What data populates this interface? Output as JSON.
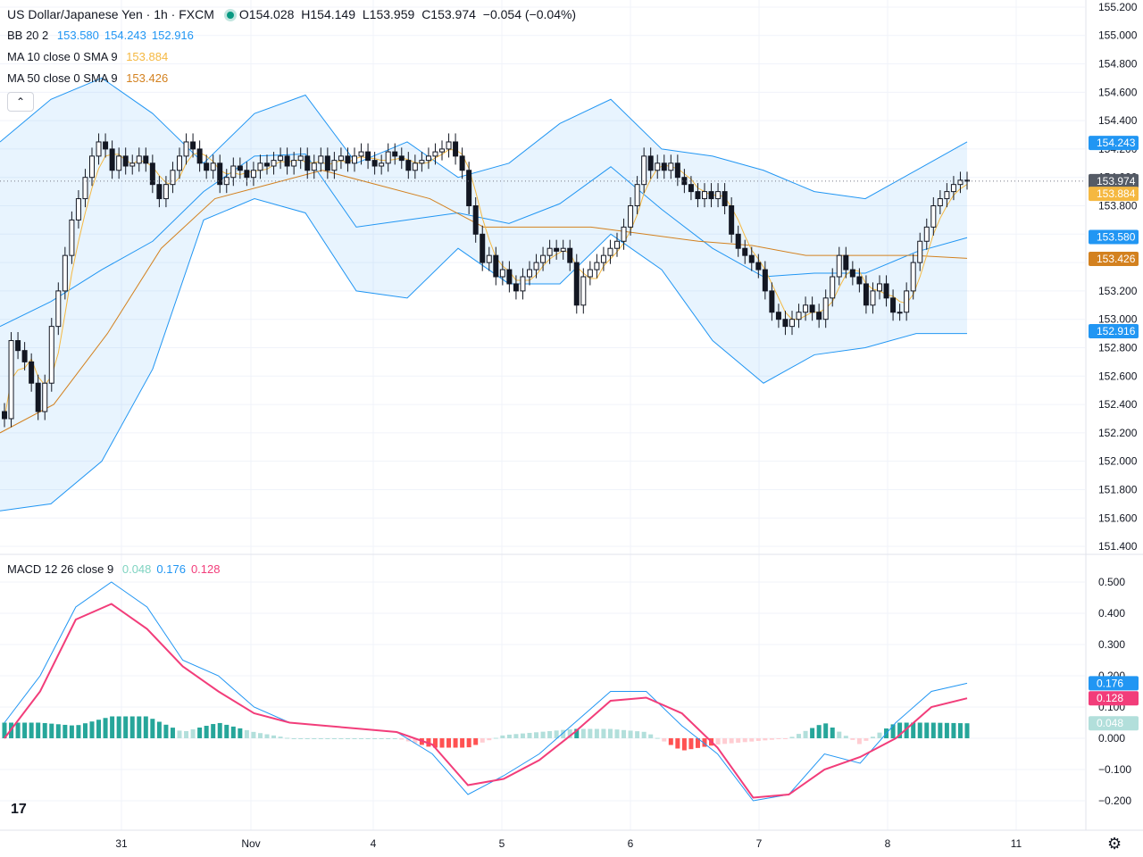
{
  "header": {
    "symbol": "US Dollar/Japanese Yen · 1h · FXCM",
    "open": "O154.028",
    "high": "H154.149",
    "low": "L153.959",
    "close": "C153.974",
    "change": "−0.054 (−0.04%)"
  },
  "indicators": {
    "bb": {
      "label": "BB 20 2",
      "basis": "153.580",
      "upper": "154.243",
      "lower": "152.916",
      "color": "#2196f3"
    },
    "ma10": {
      "label": "MA 10 close 0 SMA 9",
      "value": "153.884",
      "color": "#f5b841"
    },
    "ma50": {
      "label": "MA 50 close 0 SMA 9",
      "value": "153.426",
      "color": "#d3811f"
    },
    "macd": {
      "label": "MACD 12 26 close 9",
      "hist": "0.048",
      "macd": "0.176",
      "signal": "0.128",
      "hist_color": "#7fd3c1",
      "macd_color": "#2196f3",
      "signal_color": "#f23d7a"
    }
  },
  "price_tags": {
    "last": "153.974",
    "ma10": "153.884",
    "bb_upper": "154.243",
    "bb_basis": "153.580",
    "ma50": "153.426",
    "bb_lower": "152.916",
    "macd": "0.176",
    "signal": "0.128",
    "hist": "0.048"
  },
  "icons": {
    "collapse": "chevron-up-icon",
    "logo": "tradingview-logo",
    "settings": "gear-icon"
  },
  "logo_text": "17",
  "chart_data": {
    "type": "candlestick",
    "title": "US Dollar/Japanese Yen · 1h · FXCM",
    "x_ticks": [
      "31",
      "Nov",
      "4",
      "5",
      "6",
      "7",
      "8",
      "11"
    ],
    "y_ticks": [
      "155.200",
      "155.000",
      "154.800",
      "154.600",
      "154.400",
      "154.200",
      "154.000",
      "153.800",
      "153.600",
      "153.400",
      "153.200",
      "153.000",
      "152.800",
      "152.600",
      "152.400",
      "152.200",
      "152.000",
      "151.800",
      "151.600",
      "151.400"
    ],
    "ylim": [
      151.35,
      155.25
    ],
    "macd_ticks": [
      "0.500",
      "0.400",
      "0.300",
      "0.200",
      "0.100",
      "0.000",
      "−0.100",
      "−0.200"
    ],
    "macd_ylim": [
      -0.23,
      0.52
    ],
    "grid": true,
    "session_positions": [
      0,
      9.5,
      19.5,
      29.5,
      39.5,
      49.5,
      59.5,
      69.5
    ],
    "closes": [
      152.3,
      152.85,
      152.78,
      152.7,
      152.55,
      152.35,
      152.55,
      152.95,
      153.2,
      153.45,
      153.7,
      153.85,
      154.0,
      154.15,
      154.25,
      154.2,
      154.05,
      154.15,
      154.08,
      154.1,
      154.15,
      154.1,
      153.95,
      153.85,
      153.95,
      154.05,
      154.15,
      154.25,
      154.2,
      154.1,
      154.05,
      154.1,
      153.95,
      154.0,
      154.08,
      154.05,
      154.0,
      154.05,
      154.1,
      154.08,
      154.12,
      154.15,
      154.08,
      154.12,
      154.15,
      154.05,
      154.1,
      154.15,
      154.05,
      154.12,
      154.15,
      154.1,
      154.15,
      154.18,
      154.12,
      154.08,
      154.1,
      154.18,
      154.15,
      154.12,
      154.05,
      154.1,
      154.12,
      154.15,
      154.18,
      154.2,
      154.25,
      154.15,
      154.05,
      153.8,
      153.6,
      153.4,
      153.45,
      153.3,
      153.35,
      153.25,
      153.2,
      153.3,
      153.35,
      153.4,
      153.45,
      153.5,
      153.48,
      153.5,
      153.4,
      153.1,
      153.3,
      153.35,
      153.4,
      153.45,
      153.5,
      153.55,
      153.65,
      153.8,
      153.95,
      154.15,
      154.05,
      154.1,
      154.05,
      154.1,
      154.0,
      153.95,
      153.9,
      153.85,
      153.9,
      153.85,
      153.9,
      153.8,
      153.6,
      153.5,
      153.45,
      153.4,
      153.35,
      153.2,
      153.05,
      153.0,
      152.95,
      153.0,
      153.05,
      153.1,
      153.05,
      153.0,
      153.15,
      153.3,
      153.45,
      153.35,
      153.3,
      153.25,
      153.1,
      153.2,
      153.25,
      153.15,
      153.05,
      153.05,
      153.2,
      153.4,
      153.55,
      153.65,
      153.8,
      153.85,
      153.9,
      153.95,
      153.98,
      153.974
    ],
    "bb_upper": [
      154.25,
      154.55,
      154.7,
      154.45,
      154.1,
      154.45,
      154.58,
      154.1,
      154.25,
      154.0,
      154.1,
      154.38,
      154.55,
      154.2,
      154.15,
      154.05,
      153.9,
      153.85,
      154.05,
      154.25
    ],
    "bb_lower": [
      151.65,
      151.7,
      152.0,
      152.65,
      153.7,
      153.85,
      153.75,
      153.2,
      153.15,
      153.5,
      153.25,
      153.25,
      153.6,
      153.35,
      152.85,
      152.55,
      152.75,
      152.8,
      152.9,
      152.9
    ],
    "ma50": [
      152.2,
      152.4,
      152.9,
      153.5,
      153.85,
      153.95,
      154.05,
      153.95,
      153.85,
      153.65,
      153.65,
      153.65,
      153.6,
      153.55,
      153.52,
      153.45,
      153.45,
      153.45,
      153.43
    ],
    "macd_line": [
      0.05,
      0.2,
      0.42,
      0.5,
      0.42,
      0.25,
      0.2,
      0.1,
      0.05,
      0.04,
      0.03,
      0.02,
      -0.05,
      -0.18,
      -0.12,
      -0.05,
      0.05,
      0.15,
      0.15,
      0.04,
      -0.05,
      -0.2,
      -0.18,
      -0.05,
      -0.08,
      0.05,
      0.15,
      0.176
    ],
    "signal_line": [
      0.0,
      0.15,
      0.38,
      0.43,
      0.35,
      0.23,
      0.15,
      0.08,
      0.05,
      0.04,
      0.03,
      0.02,
      -0.02,
      -0.15,
      -0.13,
      -0.07,
      0.02,
      0.12,
      0.13,
      0.08,
      -0.03,
      -0.19,
      -0.18,
      -0.1,
      -0.06,
      0.0,
      0.1,
      0.128
    ]
  }
}
